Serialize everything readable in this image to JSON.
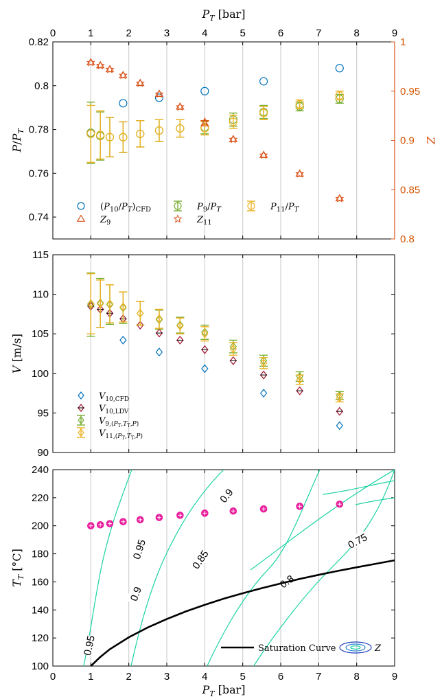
{
  "chart_data": [
    {
      "type": "scatter",
      "panel": "top",
      "xlabel": "P_T [bar]",
      "ylabel": "P/P_T",
      "ylabel_right": "Z",
      "xlim": [
        0,
        9
      ],
      "ylim": [
        0.73,
        0.82
      ],
      "ylim_right": [
        0.8,
        1.0
      ],
      "xticks": [
        "0",
        "1",
        "2",
        "3",
        "4",
        "5",
        "6",
        "7",
        "8",
        "9"
      ],
      "yticks": [
        "0.74",
        "0.76",
        "0.78",
        "0.8",
        "0.82"
      ],
      "yticks_right": [
        "0.8",
        "0.85",
        "0.9",
        "0.95",
        "1"
      ],
      "grid": "vertical",
      "legend_position": "bottom",
      "legend_labels": [
        "(P10/PT)CFD",
        "Z9",
        "P9/PT",
        "Z11",
        "P11/PT"
      ],
      "colors": {
        "blue": "#0072BD",
        "orange": "#D95319",
        "green": "#77AC30",
        "gold": "#EDB120"
      },
      "series": [
        {
          "name": "(P10/PT)CFD",
          "axis": "left",
          "marker": "circle",
          "color": "#0072BD",
          "x": [
            1.0,
            1.85,
            2.8,
            4.0,
            5.55,
            7.55
          ],
          "y": [
            0.7785,
            0.792,
            0.7945,
            0.7975,
            0.802,
            0.808
          ]
        },
        {
          "name": "P9/PT",
          "axis": "left",
          "marker": "circle",
          "color": "#77AC30",
          "x": [
            1.0,
            1.25,
            1.5,
            1.85,
            2.3,
            2.8,
            3.35,
            4.0,
            4.75,
            5.55,
            6.5,
            7.55
          ],
          "y": [
            0.7785,
            0.777,
            0.7765,
            0.7765,
            0.778,
            0.7795,
            0.7805,
            0.781,
            0.7845,
            0.788,
            0.7905,
            0.794
          ],
          "err": [
            0.014,
            0.011,
            0.009,
            0.007,
            0.006,
            0.005,
            0.004,
            0.003,
            0.003,
            0.003,
            0.002,
            0.002
          ]
        },
        {
          "name": "P11/PT",
          "axis": "left",
          "marker": "circle",
          "color": "#EDB120",
          "x": [
            1.0,
            1.25,
            1.5,
            1.85,
            2.3,
            2.8,
            3.35,
            4.0,
            4.75,
            5.55,
            6.5,
            7.55
          ],
          "y": [
            0.778,
            0.7775,
            0.7765,
            0.7765,
            0.778,
            0.7795,
            0.7805,
            0.7805,
            0.7835,
            0.7875,
            0.7915,
            0.7955
          ],
          "err": [
            0.013,
            0.011,
            0.009,
            0.007,
            0.006,
            0.005,
            0.004,
            0.003,
            0.003,
            0.003,
            0.002,
            0.002
          ]
        },
        {
          "name": "Z9",
          "axis": "right",
          "marker": "triangle",
          "color": "#D95319",
          "x": [
            1.0,
            1.25,
            1.5,
            1.85,
            2.3,
            2.8,
            3.35,
            4.0,
            4.75,
            5.55,
            6.5,
            7.55
          ],
          "y": [
            0.979,
            0.976,
            0.972,
            0.966,
            0.958,
            0.947,
            0.934,
            0.917,
            0.901,
            0.885,
            0.866,
            0.841
          ]
        },
        {
          "name": "Z11",
          "axis": "right",
          "marker": "star",
          "color": "#D95319",
          "x": [
            1.0,
            1.25,
            1.5,
            1.85,
            2.3,
            2.8,
            3.35,
            4.0,
            4.75,
            5.55,
            6.5,
            7.55
          ],
          "y": [
            0.979,
            0.976,
            0.972,
            0.966,
            0.958,
            0.947,
            0.934,
            0.919,
            0.901,
            0.885,
            0.866,
            0.841
          ]
        }
      ]
    },
    {
      "type": "scatter",
      "panel": "middle",
      "ylabel": "V [m/s]",
      "xlim": [
        0,
        9
      ],
      "ylim": [
        90,
        115
      ],
      "yticks": [
        "90",
        "95",
        "100",
        "105",
        "110",
        "115"
      ],
      "grid": "vertical",
      "legend_position": "bottom-left",
      "legend_labels": [
        "V10,CFD",
        "V10,LDV",
        "V9,(PT,TT,P)",
        "V11,(PT,TT,P)"
      ],
      "series": [
        {
          "name": "V10,CFD",
          "marker": "diamond",
          "color": "#0072BD",
          "x": [
            1.0,
            1.85,
            2.8,
            4.0,
            5.55,
            7.55
          ],
          "y": [
            108.8,
            104.2,
            102.7,
            100.6,
            97.5,
            93.4
          ]
        },
        {
          "name": "V10,LDV",
          "marker": "diamond-bar",
          "color": "#A2142F",
          "x": [
            1.0,
            1.25,
            1.5,
            1.85,
            2.3,
            2.8,
            3.35,
            4.0,
            4.75,
            5.55,
            6.5,
            7.55
          ],
          "y": [
            108.5,
            108.1,
            107.6,
            106.9,
            106.1,
            105.1,
            104.2,
            103.0,
            101.6,
            99.8,
            97.8,
            95.2
          ]
        },
        {
          "name": "V9,(PT,TT,P)",
          "marker": "diamond",
          "color": "#77AC30",
          "x": [
            1.0,
            1.25,
            1.5,
            1.85,
            2.3,
            2.8,
            3.35,
            4.0,
            4.75,
            5.55,
            6.5,
            7.55
          ],
          "y": [
            108.7,
            108.9,
            108.7,
            108.3,
            107.6,
            106.8,
            106.1,
            105.2,
            103.4,
            101.6,
            99.6,
            97.2
          ],
          "err": [
            4.0,
            3.1,
            2.5,
            2.0,
            1.5,
            1.2,
            1.0,
            0.9,
            0.8,
            0.7,
            0.6,
            0.5
          ]
        },
        {
          "name": "V11,(PT,TT,P)",
          "marker": "diamond",
          "color": "#EDB120",
          "x": [
            1.0,
            1.25,
            1.5,
            1.85,
            2.3,
            2.8,
            3.35,
            4.0,
            4.75,
            5.55,
            6.5,
            7.55
          ],
          "y": [
            108.8,
            108.8,
            108.8,
            108.4,
            107.6,
            106.9,
            106.0,
            105.0,
            103.1,
            101.3,
            99.2,
            96.9
          ],
          "err": [
            3.8,
            3.0,
            2.4,
            1.9,
            1.5,
            1.2,
            1.0,
            0.9,
            0.8,
            0.7,
            0.6,
            0.5
          ]
        }
      ]
    },
    {
      "type": "scatter",
      "panel": "bottom",
      "xlabel": "P_T [bar]",
      "ylabel": "T_T [°C]",
      "xlim": [
        0,
        9
      ],
      "ylim": [
        100,
        240
      ],
      "yticks": [
        "100",
        "120",
        "140",
        "160",
        "180",
        "200",
        "220",
        "240"
      ],
      "grid": "vertical",
      "legend_position": "bottom-right",
      "legend_labels": [
        "Saturation Curve",
        "Z"
      ],
      "contour_labels": [
        "0.95",
        "0.9",
        "0.85",
        "0.8",
        "0.75",
        "0.95",
        "0.9"
      ],
      "saturation_curve": {
        "name": "Saturation Curve",
        "color": "#000000",
        "x": [
          1.0,
          1.25,
          1.5,
          2.0,
          2.5,
          3.0,
          3.5,
          4.0,
          4.5,
          5.0,
          5.5,
          6.0,
          6.5,
          7.0,
          7.5,
          8.0,
          8.5,
          9.0
        ],
        "y": [
          100,
          106.5,
          112,
          120.5,
          127.5,
          133.5,
          138.9,
          143.6,
          148.0,
          151.9,
          155.5,
          158.9,
          162.1,
          165.0,
          167.8,
          170.4,
          172.9,
          175.4
        ]
      },
      "measurements": {
        "marker": "circle-filled",
        "color": "#E91E9C",
        "x": [
          1.0,
          1.25,
          1.5,
          1.85,
          2.3,
          2.8,
          3.35,
          4.0,
          4.75,
          5.55,
          6.5,
          7.55
        ],
        "y": [
          200.0,
          200.7,
          201.5,
          202.9,
          204.3,
          205.9,
          207.5,
          209.0,
          210.5,
          212.0,
          213.9,
          215.4
        ]
      }
    }
  ]
}
